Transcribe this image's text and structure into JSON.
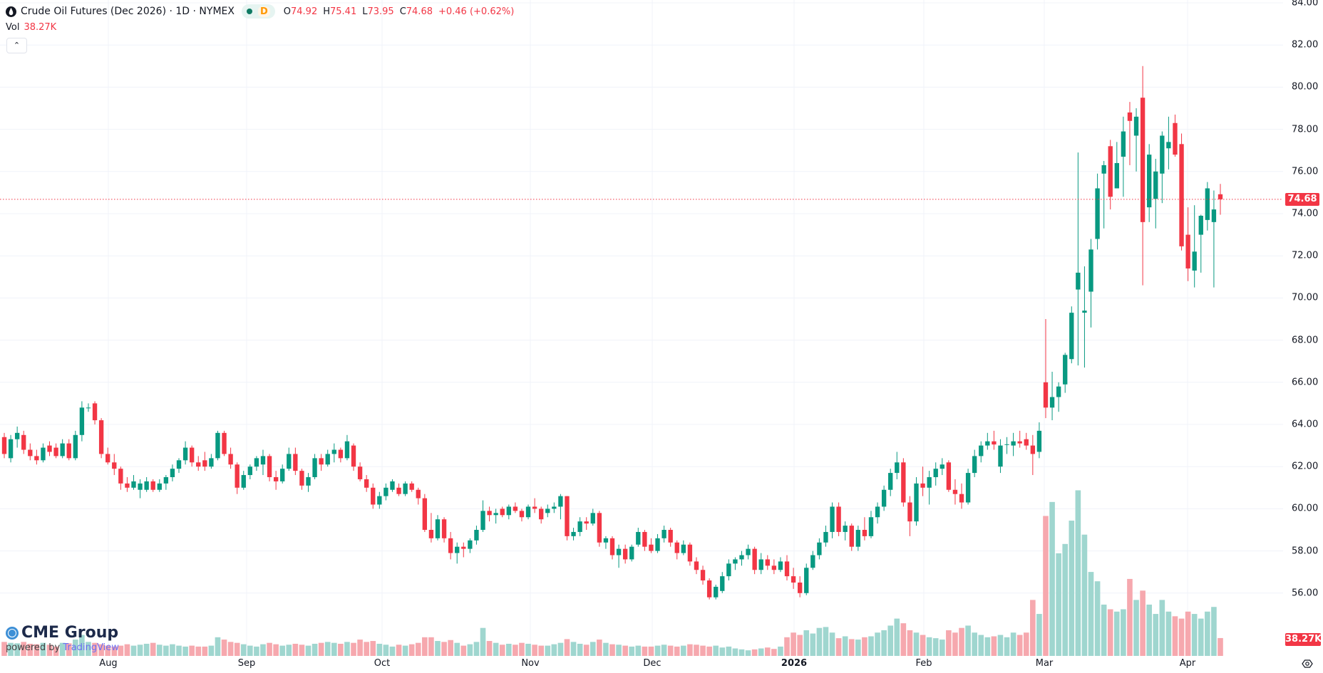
{
  "header": {
    "symbol_icon": "oil-drop-icon",
    "title": "Crude Oil Futures (Dec 2026) · 1D · NYMEX",
    "market_status": "D",
    "ohlc": {
      "o_label": "O",
      "o": "74.92",
      "h_label": "H",
      "h": "75.41",
      "l_label": "L",
      "l": "73.95",
      "c_label": "C",
      "c": "74.68",
      "change": "+0.46 (+0.62%)"
    },
    "vol_label": "Vol",
    "vol_value": "38.27K",
    "collapse_icon": "chevron-up-icon"
  },
  "branding": {
    "logo": "CME Group",
    "powered": "powered by",
    "tv": "TradingView"
  },
  "chart_data": {
    "type": "candlestick",
    "title": "Crude Oil Futures (Dec 2026) · 1D · NYMEX",
    "y_range": [
      56,
      84
    ],
    "y_ticks": [
      "84.00",
      "82.00",
      "80.00",
      "78.00",
      "76.00",
      "74.00",
      "72.00",
      "70.00",
      "68.00",
      "66.00",
      "64.00",
      "62.00",
      "60.00",
      "58.00",
      "56.00"
    ],
    "x_ticks": [
      "Aug",
      "Sep",
      "Oct",
      "Nov",
      "Dec",
      "2026",
      "Feb",
      "Mar",
      "Apr"
    ],
    "grid": true,
    "last_price": "74.68",
    "last_volume": "38.27K",
    "colors": {
      "up": "#089981",
      "down": "#f23645",
      "up_volume": "#9fd6cf",
      "down_volume": "#f6a8ae",
      "grid": "#f0f3fa"
    },
    "volume_unit": "K",
    "ohlcv": [
      [
        63.4,
        63.6,
        62.4,
        62.6,
        30
      ],
      [
        62.4,
        63.5,
        62.2,
        63.3,
        28
      ],
      [
        63.3,
        63.9,
        62.9,
        63.6,
        27
      ],
      [
        63.5,
        63.7,
        62.6,
        62.8,
        30
      ],
      [
        62.8,
        63.1,
        62.3,
        62.5,
        26
      ],
      [
        62.5,
        62.8,
        62.1,
        62.3,
        25
      ],
      [
        62.3,
        63.1,
        62.2,
        62.9,
        28
      ],
      [
        63.0,
        63.2,
        62.5,
        62.7,
        24
      ],
      [
        62.9,
        63.1,
        62.4,
        62.5,
        20
      ],
      [
        62.5,
        63.3,
        62.4,
        63.1,
        28
      ],
      [
        63.1,
        63.3,
        62.3,
        62.4,
        27
      ],
      [
        62.4,
        63.7,
        62.3,
        63.5,
        35
      ],
      [
        63.5,
        65.1,
        63.2,
        64.8,
        45
      ],
      [
        64.8,
        65.0,
        64.6,
        64.8,
        30
      ],
      [
        65.0,
        65.1,
        64.0,
        64.2,
        28
      ],
      [
        64.2,
        64.3,
        62.4,
        62.6,
        25
      ],
      [
        62.6,
        62.9,
        62.1,
        62.2,
        22
      ],
      [
        62.2,
        62.6,
        61.6,
        61.9,
        20
      ],
      [
        61.9,
        62.0,
        60.9,
        61.2,
        22
      ],
      [
        61.2,
        61.5,
        60.8,
        61.0,
        25
      ],
      [
        61.0,
        61.6,
        60.9,
        61.3,
        22
      ],
      [
        60.9,
        61.4,
        60.5,
        61.2,
        24
      ],
      [
        60.9,
        61.5,
        60.8,
        61.3,
        26
      ],
      [
        61.3,
        61.4,
        60.8,
        60.9,
        28
      ],
      [
        60.9,
        61.4,
        60.8,
        61.2,
        24
      ],
      [
        61.2,
        61.6,
        60.9,
        61.5,
        22
      ],
      [
        61.5,
        62.1,
        61.3,
        61.9,
        25
      ],
      [
        61.9,
        62.4,
        61.7,
        62.3,
        22
      ],
      [
        62.3,
        63.2,
        62.1,
        62.9,
        20
      ],
      [
        62.9,
        63.0,
        62.0,
        62.2,
        22
      ],
      [
        62.2,
        62.5,
        61.8,
        62.0,
        20
      ],
      [
        62.3,
        62.7,
        61.8,
        62.0,
        20
      ],
      [
        62.0,
        62.6,
        61.9,
        62.4,
        22
      ],
      [
        62.4,
        63.7,
        62.3,
        63.6,
        40
      ],
      [
        63.6,
        63.7,
        62.5,
        62.6,
        35
      ],
      [
        62.6,
        62.9,
        61.9,
        62.1,
        30
      ],
      [
        62.1,
        62.2,
        60.7,
        61.0,
        28
      ],
      [
        61.0,
        61.8,
        60.9,
        61.6,
        25
      ],
      [
        61.6,
        62.1,
        61.4,
        62.0,
        22
      ],
      [
        62.0,
        62.5,
        61.8,
        62.4,
        20
      ],
      [
        62.1,
        62.8,
        61.6,
        62.5,
        25
      ],
      [
        62.5,
        62.6,
        61.3,
        61.5,
        28
      ],
      [
        61.5,
        61.8,
        60.9,
        61.3,
        25
      ],
      [
        61.3,
        62.1,
        61.2,
        61.9,
        22
      ],
      [
        61.9,
        62.9,
        61.8,
        62.6,
        24
      ],
      [
        62.6,
        62.9,
        61.6,
        61.8,
        26
      ],
      [
        61.8,
        61.9,
        60.9,
        61.1,
        24
      ],
      [
        61.1,
        61.7,
        60.8,
        61.5,
        22
      ],
      [
        61.5,
        62.6,
        61.4,
        62.4,
        26
      ],
      [
        62.4,
        62.6,
        61.8,
        62.1,
        28
      ],
      [
        62.1,
        62.8,
        62.0,
        62.6,
        30
      ],
      [
        62.6,
        63.1,
        62.2,
        62.8,
        28
      ],
      [
        62.8,
        62.9,
        62.2,
        62.4,
        26
      ],
      [
        62.4,
        63.5,
        62.3,
        63.2,
        30
      ],
      [
        63.0,
        63.1,
        61.8,
        62.0,
        28
      ],
      [
        62.0,
        62.2,
        61.3,
        61.4,
        35
      ],
      [
        61.4,
        61.6,
        60.8,
        61.0,
        30
      ],
      [
        61.0,
        61.2,
        60.0,
        60.2,
        32
      ],
      [
        60.2,
        60.8,
        60.0,
        60.6,
        26
      ],
      [
        60.6,
        61.2,
        60.4,
        61.0,
        24
      ],
      [
        60.9,
        61.4,
        60.8,
        61.3,
        20
      ],
      [
        61.0,
        61.2,
        60.6,
        60.7,
        24
      ],
      [
        60.7,
        61.3,
        60.6,
        61.2,
        22
      ],
      [
        61.2,
        61.3,
        60.8,
        60.9,
        25
      ],
      [
        60.9,
        61.0,
        60.2,
        60.5,
        28
      ],
      [
        60.5,
        60.7,
        58.9,
        59.0,
        40
      ],
      [
        59.0,
        59.8,
        58.4,
        58.6,
        40
      ],
      [
        58.6,
        59.7,
        58.5,
        59.5,
        32
      ],
      [
        59.5,
        59.6,
        58.4,
        58.6,
        30
      ],
      [
        58.6,
        58.9,
        57.6,
        57.9,
        34
      ],
      [
        57.9,
        58.4,
        57.4,
        58.2,
        28
      ],
      [
        58.2,
        58.4,
        57.7,
        58.1,
        22
      ],
      [
        58.1,
        58.6,
        57.9,
        58.5,
        25
      ],
      [
        58.5,
        59.2,
        58.3,
        59.0,
        30
      ],
      [
        59.0,
        60.4,
        58.9,
        59.9,
        60
      ],
      [
        59.9,
        60.1,
        59.4,
        59.7,
        32
      ],
      [
        59.7,
        60.0,
        59.3,
        59.8,
        28
      ],
      [
        60.0,
        60.1,
        59.6,
        59.7,
        24
      ],
      [
        59.7,
        60.2,
        59.5,
        60.1,
        26
      ],
      [
        60.1,
        60.3,
        59.8,
        59.9,
        24
      ],
      [
        59.9,
        60.0,
        59.4,
        59.6,
        28
      ],
      [
        59.6,
        60.2,
        59.5,
        60.1,
        26
      ],
      [
        60.1,
        60.5,
        59.8,
        60.0,
        24
      ],
      [
        60.0,
        60.1,
        59.3,
        59.5,
        22
      ],
      [
        59.8,
        60.2,
        59.6,
        60.0,
        22
      ],
      [
        60.0,
        60.3,
        59.8,
        60.1,
        25
      ],
      [
        60.1,
        60.7,
        59.5,
        60.6,
        28
      ],
      [
        60.6,
        60.6,
        58.5,
        58.7,
        36
      ],
      [
        58.7,
        59.1,
        58.5,
        58.9,
        30
      ],
      [
        58.9,
        59.6,
        58.7,
        59.4,
        26
      ],
      [
        59.4,
        59.6,
        59.0,
        59.3,
        24
      ],
      [
        59.3,
        60.0,
        59.2,
        59.8,
        30
      ],
      [
        59.8,
        59.9,
        58.2,
        58.4,
        35
      ],
      [
        58.4,
        58.7,
        58.1,
        58.6,
        28
      ],
      [
        58.6,
        58.7,
        57.6,
        57.8,
        25
      ],
      [
        57.8,
        58.3,
        57.2,
        58.1,
        24
      ],
      [
        58.1,
        58.3,
        57.4,
        57.6,
        22
      ],
      [
        57.6,
        58.3,
        57.5,
        58.2,
        20
      ],
      [
        58.3,
        59.1,
        58.2,
        58.9,
        22
      ],
      [
        58.9,
        59.0,
        58.0,
        58.2,
        20
      ],
      [
        58.3,
        58.6,
        57.9,
        58.0,
        20
      ],
      [
        58.0,
        58.8,
        57.9,
        58.6,
        22
      ],
      [
        58.6,
        59.2,
        58.4,
        59.0,
        24
      ],
      [
        59.0,
        59.1,
        58.2,
        58.4,
        22
      ],
      [
        58.4,
        58.5,
        57.6,
        57.9,
        20
      ],
      [
        57.9,
        58.5,
        57.8,
        58.3,
        22
      ],
      [
        58.3,
        58.4,
        57.3,
        57.5,
        25
      ],
      [
        57.5,
        57.7,
        56.9,
        57.1,
        24
      ],
      [
        57.1,
        57.3,
        56.4,
        56.6,
        22
      ],
      [
        56.6,
        56.7,
        55.7,
        55.8,
        20
      ],
      [
        55.8,
        56.4,
        55.7,
        56.3,
        22
      ],
      [
        56.1,
        57.0,
        56.0,
        56.8,
        18
      ],
      [
        56.8,
        57.6,
        56.6,
        57.4,
        20
      ],
      [
        57.4,
        57.7,
        57.1,
        57.6,
        16
      ],
      [
        57.6,
        58.0,
        57.3,
        57.8,
        14
      ],
      [
        57.8,
        58.3,
        57.6,
        58.1,
        12
      ],
      [
        58.1,
        58.2,
        56.9,
        57.1,
        14
      ],
      [
        57.1,
        57.9,
        56.9,
        57.6,
        16
      ],
      [
        57.6,
        57.8,
        57.1,
        57.3,
        18
      ],
      [
        57.3,
        57.6,
        56.9,
        57.1,
        15
      ],
      [
        57.1,
        57.7,
        57.0,
        57.5,
        20
      ],
      [
        57.5,
        57.8,
        56.6,
        56.8,
        40
      ],
      [
        56.8,
        57.2,
        56.2,
        56.5,
        50
      ],
      [
        56.5,
        56.8,
        55.8,
        56.0,
        45
      ],
      [
        56.0,
        57.4,
        55.9,
        57.2,
        55
      ],
      [
        57.2,
        58.0,
        57.1,
        57.8,
        48
      ],
      [
        57.8,
        58.6,
        57.6,
        58.4,
        60
      ],
      [
        58.4,
        59.2,
        58.2,
        58.9,
        62
      ],
      [
        58.9,
        60.3,
        58.6,
        60.1,
        50
      ],
      [
        60.1,
        60.3,
        58.7,
        58.9,
        38
      ],
      [
        58.9,
        59.4,
        58.5,
        59.2,
        42
      ],
      [
        59.2,
        59.3,
        58.0,
        58.2,
        36
      ],
      [
        58.2,
        59.2,
        58.0,
        59.0,
        35
      ],
      [
        59.0,
        59.6,
        58.5,
        58.7,
        40
      ],
      [
        58.7,
        59.9,
        58.6,
        59.6,
        42
      ],
      [
        59.6,
        60.3,
        59.3,
        60.1,
        50
      ],
      [
        60.1,
        61.1,
        59.9,
        60.9,
        55
      ],
      [
        60.9,
        61.9,
        60.6,
        61.7,
        65
      ],
      [
        61.7,
        62.7,
        61.4,
        62.2,
        80
      ],
      [
        62.2,
        62.4,
        60.1,
        60.3,
        70
      ],
      [
        60.3,
        60.6,
        58.7,
        59.4,
        55
      ],
      [
        59.4,
        61.5,
        59.2,
        61.2,
        50
      ],
      [
        61.2,
        62.0,
        60.6,
        61.0,
        45
      ],
      [
        61.0,
        61.8,
        60.2,
        61.5,
        40
      ],
      [
        61.5,
        62.2,
        61.1,
        61.9,
        38
      ],
      [
        61.9,
        62.4,
        61.6,
        62.1,
        35
      ],
      [
        62.2,
        62.3,
        60.8,
        60.9,
        55
      ],
      [
        60.9,
        61.4,
        60.2,
        60.7,
        50
      ],
      [
        60.7,
        61.2,
        60.0,
        60.3,
        60
      ],
      [
        60.3,
        61.9,
        60.2,
        61.7,
        65
      ],
      [
        61.7,
        62.8,
        61.5,
        62.5,
        50
      ],
      [
        62.5,
        63.2,
        62.2,
        63.0,
        45
      ],
      [
        63.0,
        63.6,
        62.8,
        63.2,
        40
      ],
      [
        63.2,
        63.7,
        62.8,
        63.05,
        42
      ],
      [
        62.0,
        63.3,
        61.7,
        63.0,
        45
      ],
      [
        63.05,
        63.4,
        62.6,
        63.06,
        40
      ],
      [
        63.0,
        63.6,
        62.5,
        63.2,
        50
      ],
      [
        63.2,
        63.7,
        62.9,
        63.1,
        45
      ],
      [
        63.3,
        63.6,
        62.8,
        63.0,
        50
      ],
      [
        63.0,
        63.5,
        61.6,
        62.6,
        120
      ],
      [
        62.7,
        64.1,
        62.4,
        63.7,
        90
      ],
      [
        66.0,
        69.0,
        64.3,
        64.8,
        300
      ],
      [
        64.8,
        66.5,
        64.2,
        65.3,
        330
      ],
      [
        65.3,
        66.0,
        64.6,
        65.8,
        220
      ],
      [
        65.9,
        67.4,
        65.5,
        67.3,
        240
      ],
      [
        67.1,
        69.6,
        66.9,
        69.3,
        290
      ],
      [
        70.4,
        76.9,
        66.8,
        71.2,
        355
      ],
      [
        69.3,
        71.5,
        66.7,
        69.4,
        260
      ],
      [
        70.3,
        72.8,
        68.6,
        72.3,
        180
      ],
      [
        72.8,
        75.9,
        72.3,
        75.2,
        160
      ],
      [
        75.9,
        76.5,
        73.3,
        76.3,
        110
      ],
      [
        77.2,
        77.5,
        74.2,
        74.8,
        100
      ],
      [
        75.2,
        77.4,
        75.2,
        76.4,
        95
      ],
      [
        76.7,
        78.6,
        74.8,
        77.9,
        100
      ],
      [
        78.8,
        79.3,
        76.3,
        78.4,
        165
      ],
      [
        77.7,
        79.0,
        76.0,
        78.6,
        120
      ],
      [
        79.5,
        81.0,
        70.6,
        73.6,
        140
      ],
      [
        74.3,
        77.3,
        73.6,
        76.8,
        110
      ],
      [
        74.7,
        76.6,
        73.3,
        76.0,
        90
      ],
      [
        75.9,
        77.9,
        74.5,
        77.7,
        120
      ],
      [
        77.1,
        78.6,
        76.1,
        77.4,
        95
      ],
      [
        78.3,
        78.7,
        76.7,
        76.8,
        85
      ],
      [
        77.3,
        77.8,
        72.25,
        72.45,
        80
      ],
      [
        73.0,
        74.3,
        70.8,
        71.4,
        95
      ],
      [
        71.3,
        74.4,
        70.5,
        72.2,
        90
      ],
      [
        73.0,
        73.95,
        71.2,
        73.9,
        80
      ],
      [
        73.7,
        75.5,
        73.2,
        75.2,
        95
      ],
      [
        73.6,
        75.1,
        70.5,
        74.2,
        105
      ],
      [
        74.92,
        75.41,
        73.95,
        74.68,
        38.27
      ]
    ]
  }
}
